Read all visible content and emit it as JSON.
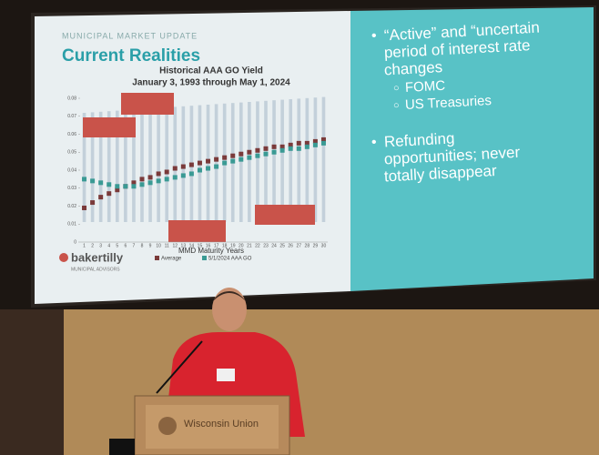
{
  "slide": {
    "kicker": "MUNICIPAL MARKET UPDATE",
    "title": "Current Realities",
    "logo": "bakertilly",
    "logo_sub": "MUNICIPAL ADVISORS",
    "bullets": [
      {
        "lines": [
          "“Active” and “uncertain",
          "period of interest rate",
          "changes"
        ],
        "sub": [
          "FOMC",
          "US Treasuries"
        ]
      },
      {
        "lines": [
          "Refunding",
          "opportunities; never",
          "totally disappear"
        ],
        "sub": []
      }
    ]
  },
  "chart_data": {
    "type": "scatter",
    "title": "Historical AAA GO Yield",
    "subtitle": "January 3, 1993 through May 1, 2024",
    "x_label": "MMD Maturity Years",
    "categories": [
      "1",
      "2",
      "3",
      "4",
      "5",
      "6",
      "7",
      "8",
      "9",
      "10",
      "11",
      "12",
      "13",
      "14",
      "15",
      "16",
      "17",
      "18",
      "19",
      "20",
      "21",
      "22",
      "23",
      "24",
      "25",
      "26",
      "27",
      "28",
      "29",
      "30"
    ],
    "series": [
      {
        "name": "Average",
        "color": "#7a3a3a",
        "values": [
          0.019,
          0.022,
          0.025,
          0.027,
          0.029,
          0.031,
          0.033,
          0.035,
          0.036,
          0.038,
          0.039,
          0.041,
          0.042,
          0.043,
          0.044,
          0.045,
          0.046,
          0.047,
          0.048,
          0.049,
          0.05,
          0.051,
          0.052,
          0.053,
          0.053,
          0.054,
          0.055,
          0.055,
          0.056,
          0.057
        ]
      },
      {
        "name": "5/1/2024 AAA GO",
        "color": "#3a9a94",
        "values": [
          0.035,
          0.034,
          0.033,
          0.032,
          0.031,
          0.031,
          0.031,
          0.032,
          0.033,
          0.034,
          0.035,
          0.036,
          0.037,
          0.038,
          0.04,
          0.041,
          0.042,
          0.044,
          0.045,
          0.046,
          0.047,
          0.048,
          0.049,
          0.05,
          0.051,
          0.052,
          0.052,
          0.053,
          0.054,
          0.055
        ]
      }
    ],
    "ylim": [
      0,
      0.08
    ],
    "yticks": [
      0,
      0.01,
      0.02,
      0.03,
      0.04,
      0.05,
      0.06,
      0.07,
      0.08
    ]
  },
  "podium": "Wisconsin Union"
}
